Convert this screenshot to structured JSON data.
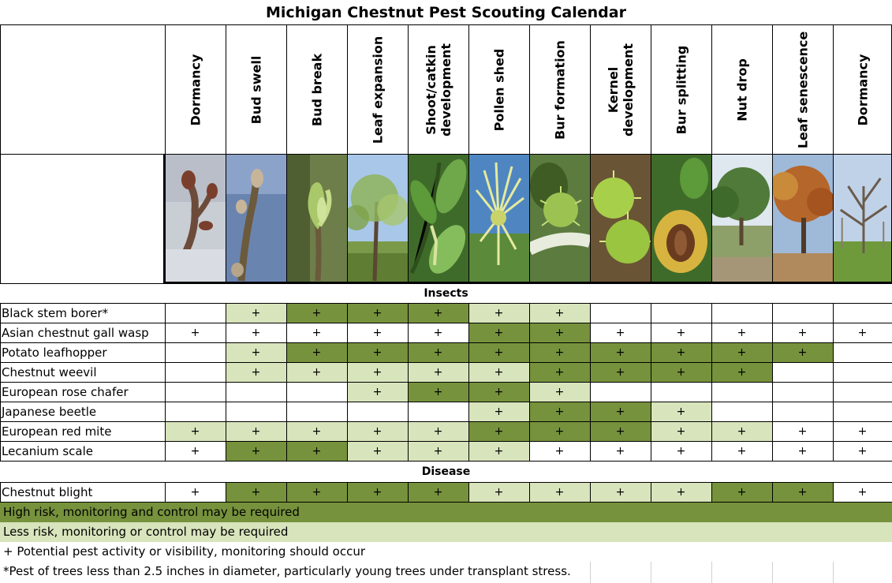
{
  "title": "Michigan Chestnut Pest Scouting Calendar",
  "colors": {
    "high": "#76923c",
    "less": "#d8e4bc",
    "none": "#ffffff",
    "grid": "#000000"
  },
  "stages": [
    "Dormancy",
    "Bud swell",
    "Bud break",
    "Leaf expansion",
    "Shoot/catkin\ndevelopment",
    "Pollen shed",
    "Bur formation",
    "Kernel\ndevelopment",
    "Bur splitting",
    "Nut drop",
    "Leaf senescence",
    "Dormancy"
  ],
  "photos": [
    "twig-buds-photo",
    "swelling-bud-photo",
    "bud-break-photo",
    "orchard-leaf-expansion-photo",
    "shoot-catkin-photo",
    "pollen-catkin-photo",
    "young-bur-photo",
    "kernel-bur-photo",
    "splitting-bur-photo",
    "nut-drop-orchard-photo",
    "senescence-tree-photo",
    "dormant-orchard-photo"
  ],
  "sections": {
    "insects": "Insects",
    "disease": "Disease"
  },
  "insects": [
    {
      "name": "Black stem borer*",
      "cells": [
        "",
        "L",
        "H",
        "H",
        "H",
        "L",
        "L",
        "",
        "",
        "",
        "",
        ""
      ]
    },
    {
      "name": "Asian chestnut gall wasp",
      "cells": [
        "W",
        "W",
        "W",
        "W",
        "W",
        "H",
        "H",
        "W",
        "W",
        "W",
        "W",
        "W"
      ]
    },
    {
      "name": "Potato leafhopper",
      "cells": [
        "",
        "L",
        "H",
        "H",
        "H",
        "H",
        "H",
        "H",
        "H",
        "H",
        "H",
        ""
      ]
    },
    {
      "name": "Chestnut weevil",
      "cells": [
        "",
        "L",
        "L",
        "L",
        "L",
        "L",
        "H",
        "H",
        "H",
        "H",
        "",
        ""
      ]
    },
    {
      "name": "European rose chafer",
      "cells": [
        "",
        "",
        "",
        "L",
        "H",
        "H",
        "L",
        "",
        "",
        "",
        "",
        ""
      ]
    },
    {
      "name": "Japanese beetle",
      "cells": [
        "",
        "",
        "",
        "",
        "",
        "L",
        "H",
        "H",
        "L",
        "",
        "",
        ""
      ]
    },
    {
      "name": "European red mite",
      "cells": [
        "L",
        "L",
        "L",
        "L",
        "L",
        "H",
        "H",
        "H",
        "L",
        "L",
        "W",
        "W"
      ]
    },
    {
      "name": "Lecanium scale",
      "cells": [
        "W",
        "H",
        "H",
        "L",
        "L",
        "L",
        "W",
        "W",
        "W",
        "W",
        "W",
        "W"
      ]
    }
  ],
  "disease": [
    {
      "name": "Chestnut blight",
      "cells": [
        "W",
        "H",
        "H",
        "H",
        "H",
        "L",
        "L",
        "L",
        "L",
        "H",
        "H",
        "W"
      ]
    }
  ],
  "mark_symbol": "+",
  "legend": {
    "high": "High risk, monitoring and control may be required",
    "less": "Less risk, monitoring or control may be required",
    "plus": "+ Potential pest activity or visibility, monitoring should occur",
    "note": "*Pest of trees less than 2.5 inches in diameter, particularly young trees under transplant stress."
  }
}
